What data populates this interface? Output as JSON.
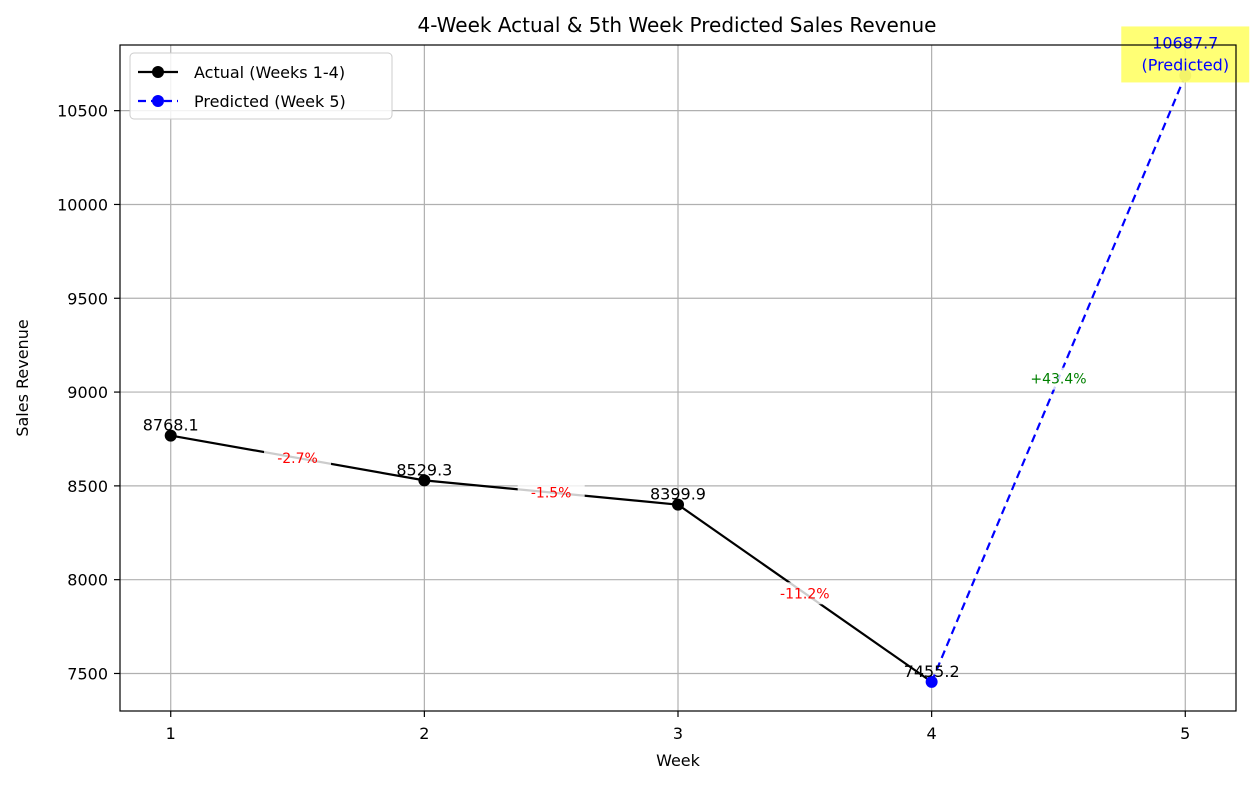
{
  "chart_data": {
    "type": "line",
    "title": "4-Week Actual & 5th Week Predicted Sales Revenue",
    "xlabel": "Week",
    "ylabel": "Sales Revenue",
    "x": [
      1,
      2,
      3,
      4,
      5
    ],
    "xlim": [
      0.8,
      5.2
    ],
    "ylim": [
      7300,
      10850
    ],
    "yticks": [
      7500,
      8000,
      8500,
      9000,
      9500,
      10000,
      10500
    ],
    "grid": true,
    "legend_position": "top-left",
    "series": [
      {
        "name": "Actual (Weeks 1-4)",
        "x": [
          1,
          2,
          3,
          4
        ],
        "values": [
          8768.1,
          8529.3,
          8399.9,
          7455.2
        ],
        "color": "#000000",
        "style": "solid",
        "marker": "circle"
      },
      {
        "name": "Predicted (Week 5)",
        "x": [
          4,
          5
        ],
        "values": [
          7455.2,
          10687.7
        ],
        "color": "#0000ff",
        "style": "dashed",
        "marker": "circle"
      }
    ],
    "point_labels": [
      {
        "x": 1,
        "y": 8768.1,
        "text": "8768.1"
      },
      {
        "x": 2,
        "y": 8529.3,
        "text": "8529.3"
      },
      {
        "x": 3,
        "y": 8399.9,
        "text": "8399.9"
      },
      {
        "x": 4,
        "y": 7455.2,
        "text": "7455.2"
      }
    ],
    "change_labels": [
      {
        "from": 1,
        "to": 2,
        "text": "-2.7%",
        "color": "#ff0000"
      },
      {
        "from": 2,
        "to": 3,
        "text": "-1.5%",
        "color": "#ff0000"
      },
      {
        "from": 3,
        "to": 4,
        "text": "-11.2%",
        "color": "#ff0000"
      },
      {
        "from": 4,
        "to": 5,
        "text": "+43.4%",
        "color": "#008000"
      }
    ],
    "predicted_annotation": {
      "x": 5,
      "y": 10687.7,
      "value_text": "10687.7",
      "note_text": "(Predicted)",
      "text_color": "#0000ff",
      "background": "#ffff66",
      "marker_color": "#808080"
    }
  }
}
